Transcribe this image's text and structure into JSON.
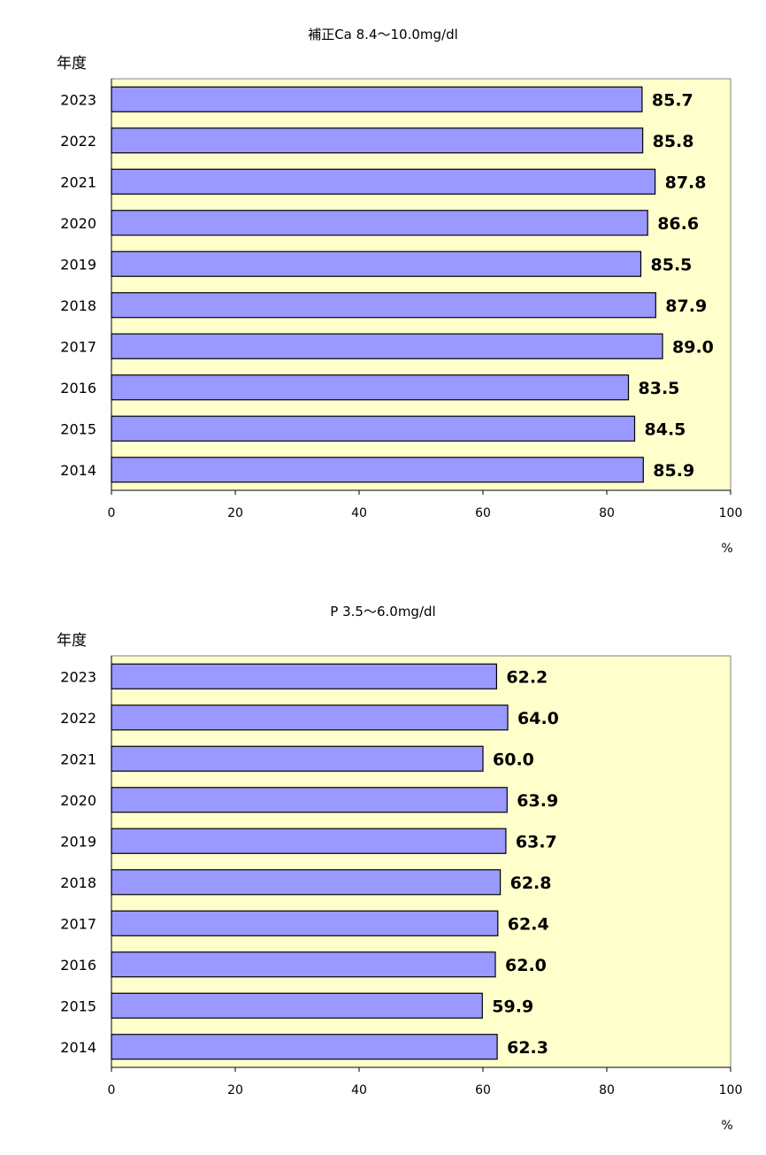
{
  "chart_data": [
    {
      "type": "bar",
      "orientation": "horizontal",
      "title": "補正Ca 8.4〜10.0mg/dl",
      "ylabel": "年度",
      "xunit": "%",
      "categories": [
        "2023",
        "2022",
        "2021",
        "2020",
        "2019",
        "2018",
        "2017",
        "2016",
        "2015",
        "2014"
      ],
      "values": [
        85.7,
        85.8,
        87.8,
        86.6,
        85.5,
        87.9,
        89.0,
        83.5,
        84.5,
        85.9
      ],
      "value_labels": [
        "85.7",
        "85.8",
        "87.8",
        "86.6",
        "85.5",
        "87.9",
        "89.0",
        "83.5",
        "84.5",
        "85.9"
      ],
      "xlim": [
        0,
        100
      ],
      "xticks": [
        "0",
        "20",
        "40",
        "60",
        "80",
        "100"
      ],
      "grid": false,
      "colors": {
        "bar": "#9999ff",
        "plot_bg": "#ffffcc",
        "bar_edge": "#000000"
      }
    },
    {
      "type": "bar",
      "orientation": "horizontal",
      "title": "P 3.5〜6.0mg/dl",
      "ylabel": "年度",
      "xunit": "%",
      "categories": [
        "2023",
        "2022",
        "2021",
        "2020",
        "2019",
        "2018",
        "2017",
        "2016",
        "2015",
        "2014"
      ],
      "values": [
        62.2,
        64.0,
        60.0,
        63.9,
        63.7,
        62.8,
        62.4,
        62.0,
        59.9,
        62.3
      ],
      "value_labels": [
        "62.2",
        "64.0",
        "60.0",
        "63.9",
        "63.7",
        "62.8",
        "62.4",
        "62.0",
        "59.9",
        "62.3"
      ],
      "xlim": [
        0,
        100
      ],
      "xticks": [
        "0",
        "20",
        "40",
        "60",
        "80",
        "100"
      ],
      "grid": false,
      "colors": {
        "bar": "#9999ff",
        "plot_bg": "#ffffcc",
        "bar_edge": "#000000"
      }
    }
  ]
}
